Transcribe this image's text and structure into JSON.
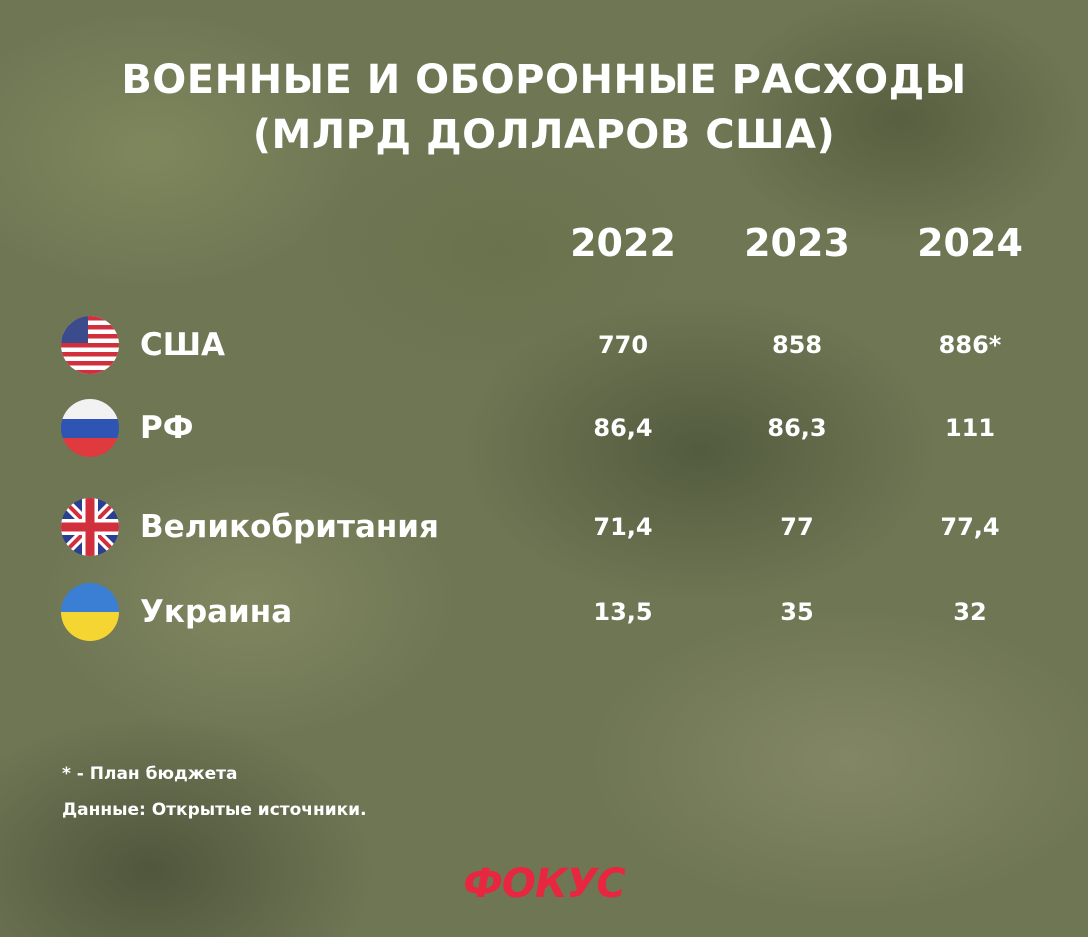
{
  "header": {
    "title": [
      "ВОЕННЫЕ И ОБОРОННЫЕ РАСХОДЫ",
      "(МЛРД ДОЛЛАРОВ США)"
    ]
  },
  "table": {
    "columns": [
      "2022",
      "2023",
      "2024"
    ],
    "rows": [
      [
        "США",
        "770",
        "858",
        "886*"
      ],
      [
        "РФ",
        "86,4",
        "86,3",
        "111"
      ],
      [
        "Великобритания",
        "71,4",
        "77",
        "77,4"
      ],
      [
        "Украина",
        "13,5",
        "35",
        "32"
      ]
    ]
  },
  "notes": [
    "* - План бюджета",
    "Данные: Открытые источники."
  ],
  "logo": "ФОКУС"
}
